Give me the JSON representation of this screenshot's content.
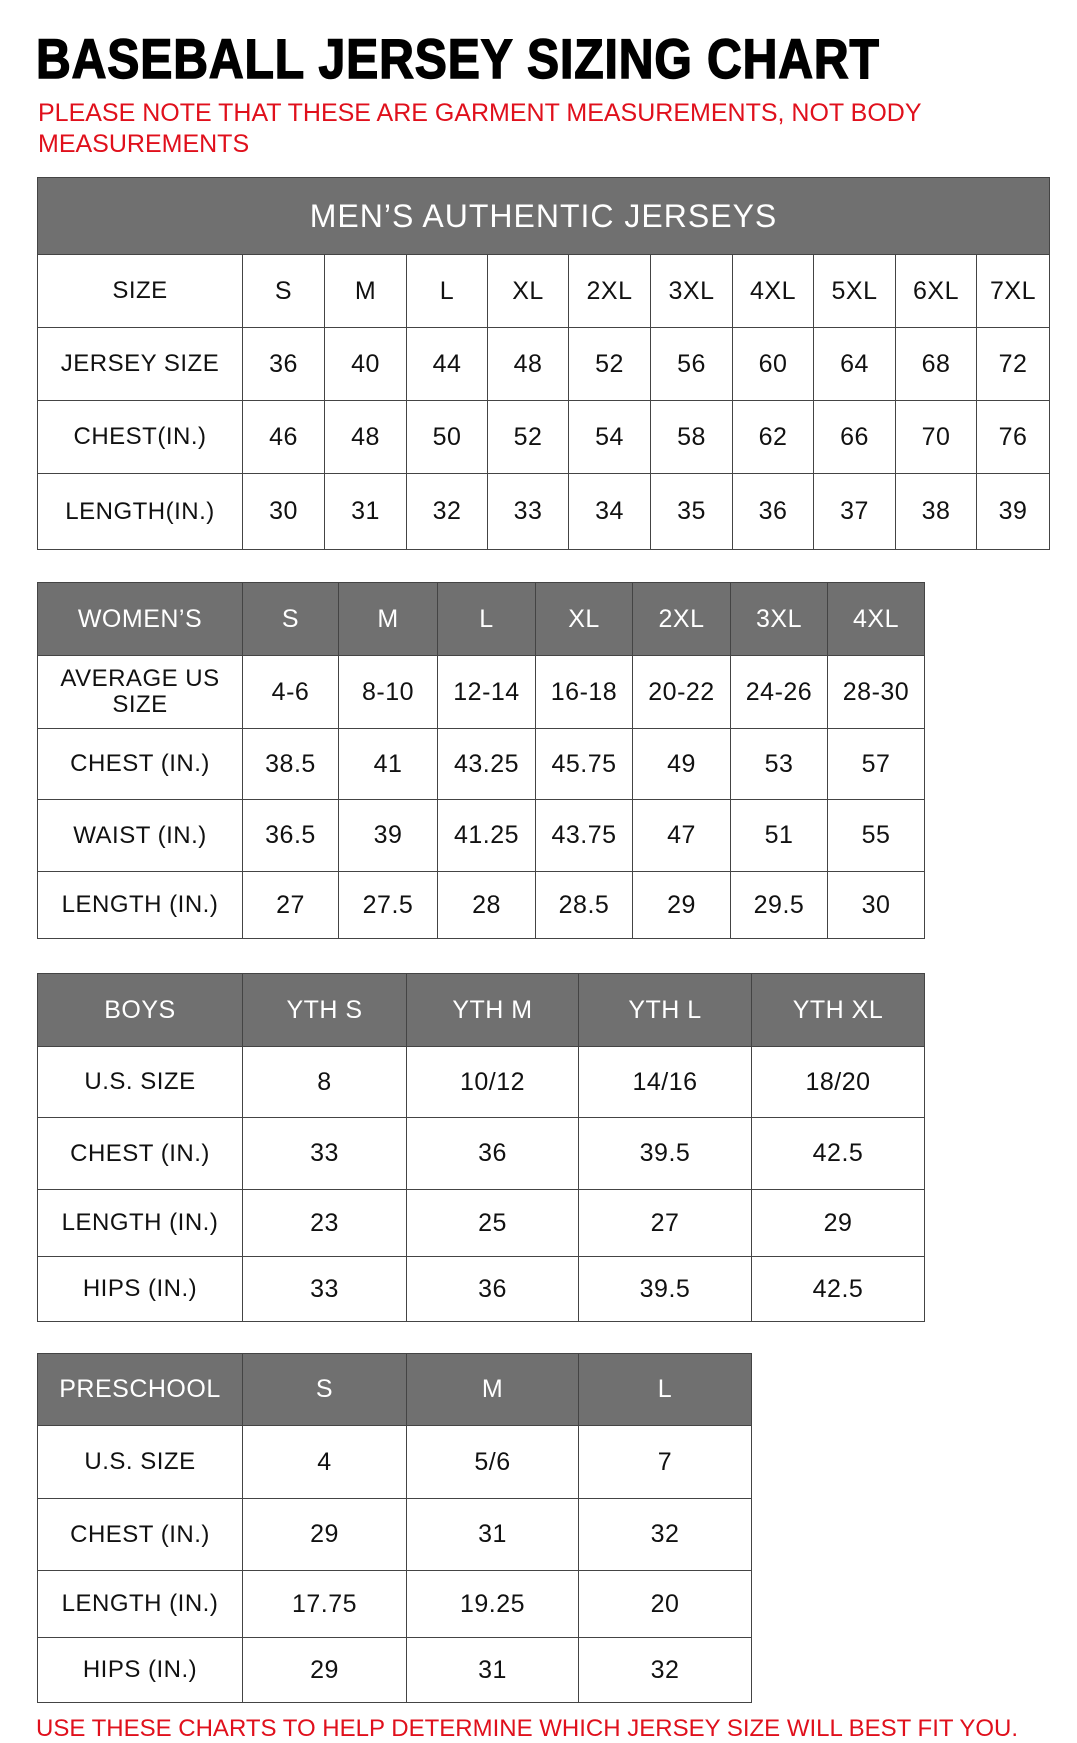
{
  "title": "BASEBALL JERSEY SIZING CHART",
  "note": "PLEASE NOTE THAT THESE ARE GARMENT MEASUREMENTS, NOT BODY MEASUREMENTS",
  "footer": "USE THESE CHARTS TO HELP DETERMINE WHICH JERSEY SIZE WILL BEST FIT YOU.",
  "colors": {
    "header_bg": "#707070",
    "accent_red": "#e0101c"
  },
  "tables": [
    {
      "id": "mens",
      "caption": "MEN’S AUTHENTIC JERSEYS",
      "header": [
        "SIZE",
        "S",
        "M",
        "L",
        "XL",
        "2XL",
        "3XL",
        "4XL",
        "5XL",
        "6XL",
        "7XL"
      ],
      "header_style": "plain",
      "rows": [
        [
          "JERSEY SIZE",
          "36",
          "40",
          "44",
          "48",
          "52",
          "56",
          "60",
          "64",
          "68",
          "72"
        ],
        [
          "CHEST(IN.)",
          "46",
          "48",
          "50",
          "52",
          "54",
          "58",
          "62",
          "66",
          "70",
          "76"
        ],
        [
          "LENGTH(IN.)",
          "30",
          "31",
          "32",
          "33",
          "34",
          "35",
          "36",
          "37",
          "38",
          "39"
        ]
      ]
    },
    {
      "id": "womens",
      "header": [
        "WOMEN’S",
        "S",
        "M",
        "L",
        "XL",
        "2XL",
        "3XL",
        "4XL"
      ],
      "rows": [
        [
          "AVERAGE US SIZE",
          "4-6",
          "8-10",
          "12-14",
          "16-18",
          "20-22",
          "24-26",
          "28-30"
        ],
        [
          "CHEST (IN.)",
          "38.5",
          "41",
          "43.25",
          "45.75",
          "49",
          "53",
          "57"
        ],
        [
          "WAIST (IN.)",
          "36.5",
          "39",
          "41.25",
          "43.75",
          "47",
          "51",
          "55"
        ],
        [
          "LENGTH (IN.)",
          "27",
          "27.5",
          "28",
          "28.5",
          "29",
          "29.5",
          "30"
        ]
      ]
    },
    {
      "id": "boys",
      "header": [
        "BOYS",
        "YTH S",
        "YTH M",
        "YTH L",
        "YTH XL"
      ],
      "rows": [
        [
          "U.S. SIZE",
          "8",
          "10/12",
          "14/16",
          "18/20"
        ],
        [
          "CHEST (IN.)",
          "33",
          "36",
          "39.5",
          "42.5"
        ],
        [
          "LENGTH (IN.)",
          "23",
          "25",
          "27",
          "29"
        ],
        [
          "HIPS (IN.)",
          "33",
          "36",
          "39.5",
          "42.5"
        ]
      ]
    },
    {
      "id": "preschool",
      "header": [
        "PRESCHOOL",
        "S",
        "M",
        "L"
      ],
      "rows": [
        [
          "U.S. SIZE",
          "4",
          "5/6",
          "7"
        ],
        [
          "CHEST (IN.)",
          "29",
          "31",
          "32"
        ],
        [
          "LENGTH (IN.)",
          "17.75",
          "19.25",
          "20"
        ],
        [
          "HIPS (IN.)",
          "29",
          "31",
          "32"
        ]
      ]
    }
  ]
}
